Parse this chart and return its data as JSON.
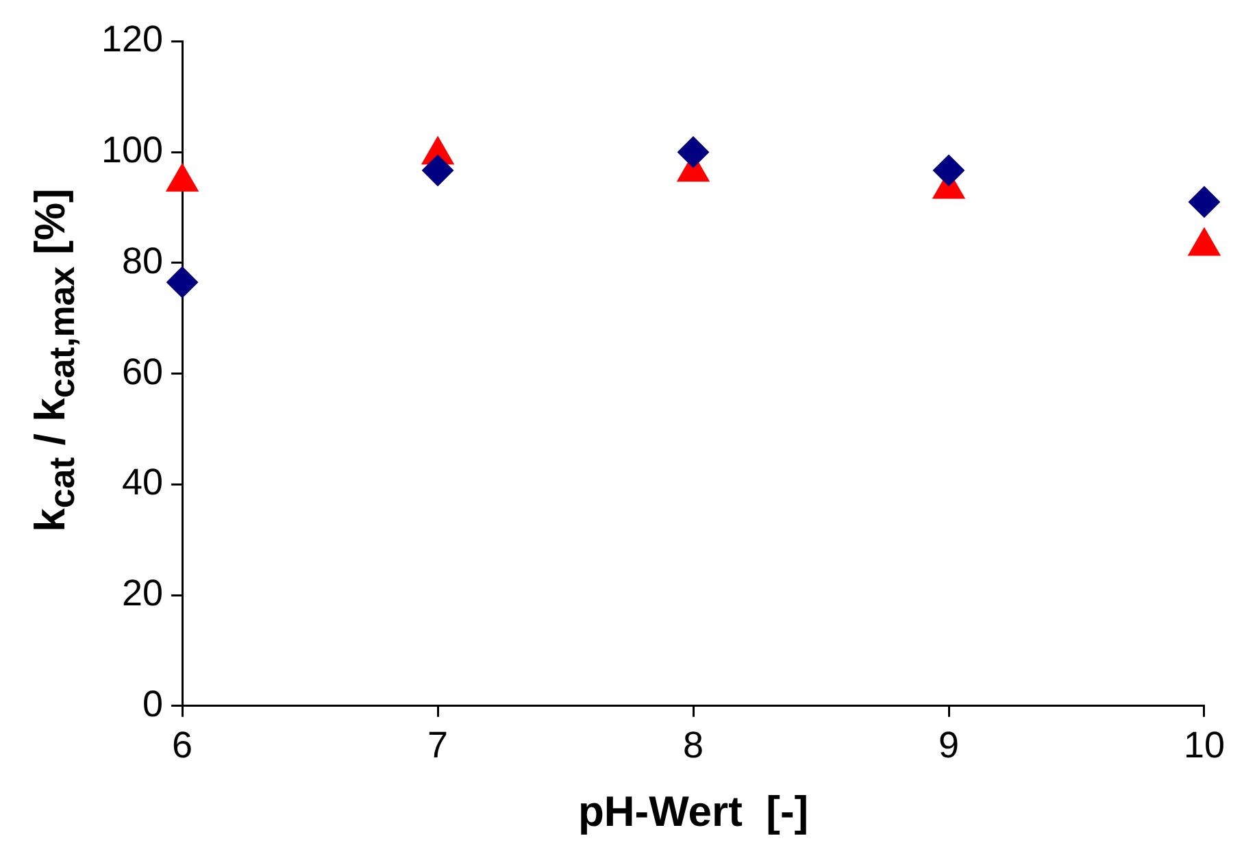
{
  "chart_data": {
    "type": "scatter",
    "xlabel": "pH-Wert  [-]",
    "ylabel": "k$_{cat}$ / k$_{cat,max}$ [%]",
    "x": [
      6,
      7,
      8,
      9,
      10
    ],
    "series": [
      {
        "color": "#000080",
        "marker": "diamond",
        "values": [
          76.5,
          96.7,
          100,
          96.7,
          91
        ]
      },
      {
        "color": "#ff0000",
        "marker": "triangle",
        "values": [
          94.6,
          99.5,
          96.4,
          93.3,
          83
        ]
      }
    ],
    "xlim": [
      6,
      10
    ],
    "xticks": [
      6,
      7,
      8,
      9,
      10
    ],
    "ylim": [
      0,
      120
    ],
    "yticks": [
      0,
      20,
      40,
      60,
      80,
      100,
      120
    ],
    "grid": false,
    "legend": false
  }
}
